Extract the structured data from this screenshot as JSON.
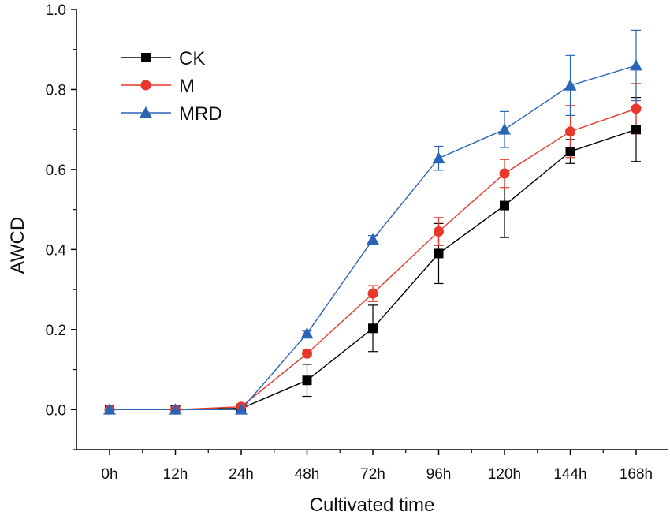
{
  "chart_data": {
    "type": "line",
    "title": "",
    "xlabel": "Cultivated time",
    "ylabel": "AWCD",
    "categories": [
      "0h",
      "12h",
      "24h",
      "48h",
      "72h",
      "96h",
      "120h",
      "144h",
      "168h"
    ],
    "ylim": [
      -0.1,
      1.0
    ],
    "yticks": [
      "0.0",
      "0.2",
      "0.4",
      "0.6",
      "0.8",
      "1.0"
    ],
    "grid": false,
    "legend_position": "top-left",
    "series": [
      {
        "name": "CK",
        "color": "#000000",
        "marker": "square",
        "values": [
          0.0,
          0.0,
          0.003,
          0.073,
          0.203,
          0.39,
          0.51,
          0.645,
          0.7
        ],
        "errors": [
          0.004,
          0.004,
          0.004,
          0.04,
          0.058,
          0.075,
          0.08,
          0.03,
          0.08
        ]
      },
      {
        "name": "M",
        "color": "#e8382c",
        "marker": "circle",
        "values": [
          0.0,
          0.0,
          0.007,
          0.14,
          0.29,
          0.445,
          0.59,
          0.695,
          0.752
        ],
        "errors": [
          0.004,
          0.004,
          0.004,
          0.008,
          0.02,
          0.035,
          0.035,
          0.065,
          0.063
        ]
      },
      {
        "name": "MRD",
        "color": "#2b65b8",
        "marker": "triangle",
        "values": [
          0.0,
          0.0,
          0.0,
          0.19,
          0.425,
          0.628,
          0.7,
          0.81,
          0.86
        ],
        "errors": [
          0.004,
          0.004,
          0.004,
          0.006,
          0.01,
          0.03,
          0.045,
          0.075,
          0.088
        ]
      }
    ]
  }
}
